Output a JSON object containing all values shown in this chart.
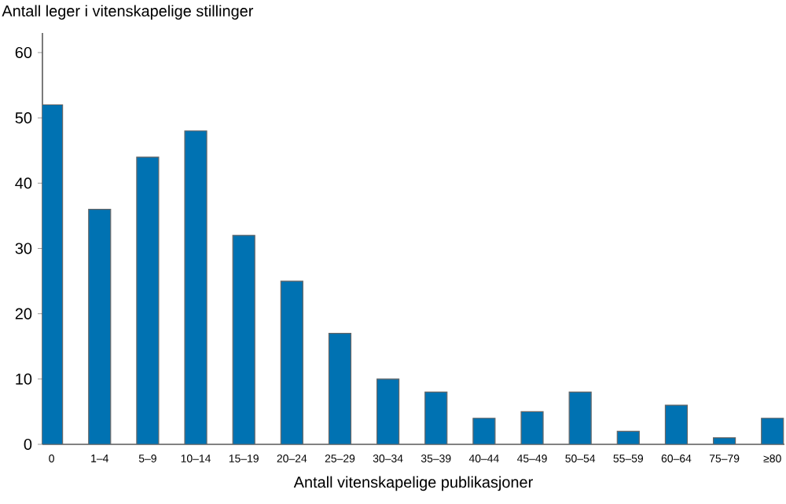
{
  "chart_data": {
    "type": "bar",
    "ylabel": "Antall leger i vitenskapelige stillinger",
    "xlabel": "Antall vitenskapelige publikasjoner",
    "categories": [
      "0",
      "1–4",
      "5–9",
      "10–14",
      "15–19",
      "20–24",
      "25–29",
      "30–34",
      "35–39",
      "40–44",
      "45–49",
      "50–54",
      "55–59",
      "60–64",
      "75–79",
      "≥80"
    ],
    "values": [
      52,
      36,
      44,
      48,
      32,
      25,
      17,
      10,
      8,
      4,
      5,
      8,
      2,
      6,
      1,
      4
    ],
    "color": "#0072b2",
    "ylim": [
      0,
      63
    ],
    "yticks": [
      0,
      10,
      20,
      30,
      40,
      50,
      60
    ],
    "grid": false
  }
}
